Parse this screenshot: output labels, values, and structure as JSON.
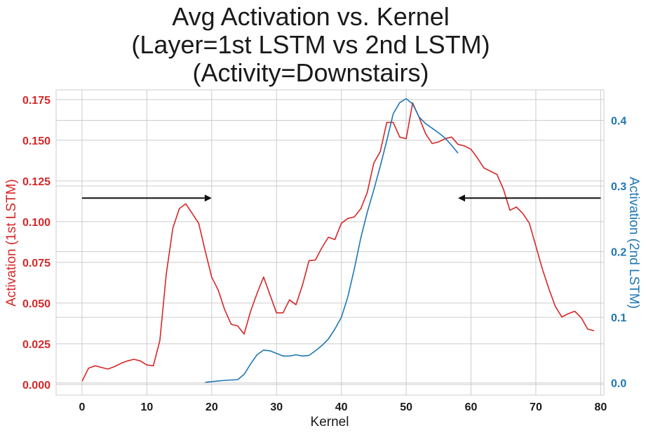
{
  "chart_data": {
    "type": "line",
    "title_lines": [
      "Avg Activation vs. Kernel",
      "(Layer=1st LSTM vs 2nd LSTM)",
      "(Activity=Downstairs)"
    ],
    "xlabel": "Kernel",
    "ylabel_left": "Activation (1st LSTM)",
    "ylabel_right": "Activation (2nd LSTM)",
    "xlim": [
      -4,
      80.5
    ],
    "ylim_left": [
      -0.0065,
      0.181
    ],
    "ylim_right": [
      -0.0185,
      0.4465
    ],
    "x_ticks": [
      0,
      10,
      20,
      30,
      40,
      50,
      60,
      70,
      80
    ],
    "y_ticks_left": [
      0.0,
      0.025,
      0.05,
      0.075,
      0.1,
      0.125,
      0.15,
      0.175
    ],
    "y_ticks_left_labels": [
      "0.000",
      "0.025",
      "0.050",
      "0.075",
      "0.100",
      "0.125",
      "0.150",
      "0.175"
    ],
    "y_ticks_right": [
      0.0,
      0.1,
      0.2,
      0.3,
      0.4
    ],
    "y_ticks_right_labels": [
      "0.0",
      "0.1",
      "0.2",
      "0.3",
      "0.4"
    ],
    "grid": true,
    "colors": {
      "left_series": "#d62728",
      "right_series": "#1f77b4",
      "grid": "#cccccc",
      "arrow": "#111111"
    },
    "series": [
      {
        "axis": "left",
        "x": [
          0,
          1,
          2,
          3,
          4,
          5,
          6,
          7,
          8,
          9,
          10,
          11,
          12,
          13,
          14,
          15,
          16,
          17,
          18,
          19,
          20,
          21,
          22,
          23,
          24,
          25,
          26,
          27,
          28,
          29,
          30,
          31,
          32,
          33,
          34,
          35,
          36,
          37,
          38,
          39,
          40,
          41,
          42,
          43,
          44,
          45,
          46,
          47,
          48,
          49,
          50,
          51,
          52,
          53,
          54,
          55,
          56,
          57,
          58,
          59,
          60,
          61,
          62,
          63,
          64,
          65,
          66,
          67,
          68,
          69,
          70,
          71,
          72,
          73,
          74,
          75,
          76,
          77,
          78,
          79
        ],
        "y": [
          0.002,
          0.01,
          0.0115,
          0.0105,
          0.0095,
          0.011,
          0.013,
          0.0145,
          0.0155,
          0.0145,
          0.012,
          0.0115,
          0.027,
          0.068,
          0.096,
          0.108,
          0.111,
          0.105,
          0.099,
          0.082,
          0.066,
          0.058,
          0.046,
          0.037,
          0.036,
          0.031,
          0.045,
          0.056,
          0.066,
          0.055,
          0.044,
          0.044,
          0.052,
          0.049,
          0.061,
          0.076,
          0.0765,
          0.084,
          0.0905,
          0.089,
          0.099,
          0.102,
          0.103,
          0.108,
          0.118,
          0.136,
          0.143,
          0.161,
          0.161,
          0.152,
          0.151,
          0.173,
          0.164,
          0.154,
          0.148,
          0.149,
          0.151,
          0.152,
          0.1475,
          0.1465,
          0.1445,
          0.139,
          0.133,
          0.131,
          0.129,
          0.12,
          0.107,
          0.109,
          0.105,
          0.099,
          0.085,
          0.071,
          0.059,
          0.048,
          0.0415,
          0.0435,
          0.045,
          0.041,
          0.034,
          0.033
        ]
      },
      {
        "axis": "right",
        "x": [
          19,
          20,
          21,
          22,
          23,
          24,
          25,
          26,
          27,
          28,
          29,
          30,
          31,
          32,
          33,
          34,
          35,
          36,
          37,
          38,
          39,
          40,
          41,
          42,
          43,
          44,
          45,
          46,
          47,
          48,
          49,
          50,
          51,
          52,
          53,
          54,
          55,
          56,
          57,
          58
        ],
        "y": [
          0.001,
          0.002,
          0.003,
          0.004,
          0.0045,
          0.005,
          0.013,
          0.029,
          0.043,
          0.05,
          0.049,
          0.045,
          0.041,
          0.041,
          0.043,
          0.041,
          0.042,
          0.049,
          0.057,
          0.067,
          0.082,
          0.1,
          0.131,
          0.174,
          0.221,
          0.26,
          0.294,
          0.33,
          0.369,
          0.41,
          0.427,
          0.433,
          0.425,
          0.405,
          0.395,
          0.388,
          0.381,
          0.373,
          0.362,
          0.35
        ]
      }
    ],
    "annotations": [
      {
        "type": "arrow",
        "axis": "left",
        "from": [
          0,
          0.1145
        ],
        "to": [
          20,
          0.1145
        ],
        "direction": "right"
      },
      {
        "type": "arrow",
        "axis": "left",
        "from": [
          80,
          0.1145
        ],
        "to": [
          58,
          0.1145
        ],
        "direction": "left"
      }
    ]
  }
}
